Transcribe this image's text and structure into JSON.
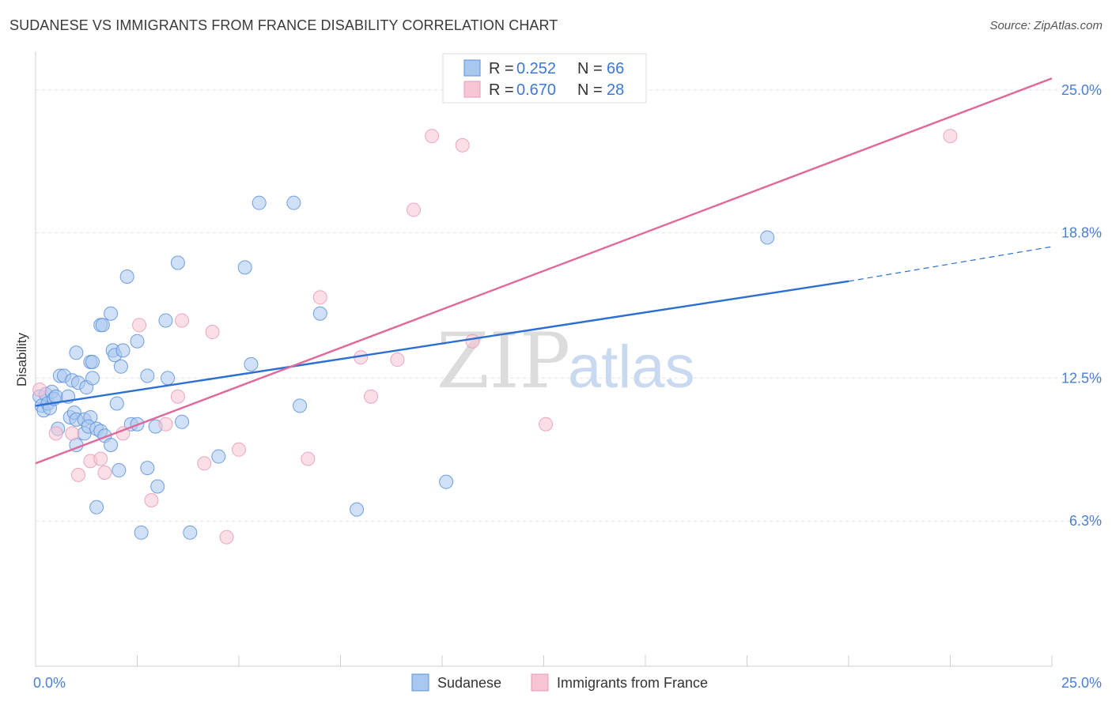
{
  "title": "SUDANESE VS IMMIGRANTS FROM FRANCE DISABILITY CORRELATION CHART",
  "source": "Source: ZipAtlas.com",
  "watermark": {
    "zip": "ZIP",
    "atlas": "atlas"
  },
  "chart_data": {
    "type": "scatter",
    "title": "SUDANESE VS IMMIGRANTS FROM FRANCE DISABILITY CORRELATION CHART",
    "xlabel": "",
    "ylabel": "Disability",
    "xlim": [
      0,
      25
    ],
    "ylim": [
      0,
      26.5
    ],
    "x_tick_labels": [
      {
        "value": 0,
        "label": "0.0%"
      },
      {
        "value": 25,
        "label": "25.0%"
      }
    ],
    "y_tick_labels": [
      {
        "value": 6.3,
        "label": "6.3%"
      },
      {
        "value": 12.5,
        "label": "12.5%"
      },
      {
        "value": 18.8,
        "label": "18.8%"
      },
      {
        "value": 25.0,
        "label": "25.0%"
      }
    ],
    "grid": true,
    "legend_position": "top-center",
    "series": [
      {
        "name": "Sudanese",
        "color": "#5b8fd9",
        "fill": "#a9c8f0",
        "stats": {
          "r_label": "R =",
          "r": "0.252",
          "n_label": "N =",
          "n": "66"
        },
        "trend": {
          "x0": 0,
          "y0": 11.3,
          "x1": 20,
          "y1": 16.7,
          "dashed_to_x": 25,
          "dashed_to_y": 18.2,
          "color": "#2a6fd1"
        },
        "points": [
          [
            0.1,
            11.7
          ],
          [
            0.15,
            11.3
          ],
          [
            0.2,
            11.1
          ],
          [
            0.25,
            11.8
          ],
          [
            0.3,
            11.4
          ],
          [
            0.35,
            11.2
          ],
          [
            0.4,
            11.9
          ],
          [
            0.45,
            11.6
          ],
          [
            0.5,
            11.7
          ],
          [
            0.55,
            10.3
          ],
          [
            0.6,
            12.6
          ],
          [
            0.7,
            12.6
          ],
          [
            0.8,
            11.7
          ],
          [
            0.85,
            10.8
          ],
          [
            0.9,
            12.4
          ],
          [
            0.95,
            11.0
          ],
          [
            1.0,
            9.6
          ],
          [
            1.0,
            10.7
          ],
          [
            1.05,
            12.3
          ],
          [
            1.0,
            13.6
          ],
          [
            1.2,
            10.7
          ],
          [
            1.2,
            10.1
          ],
          [
            1.25,
            12.1
          ],
          [
            1.35,
            10.8
          ],
          [
            1.3,
            10.4
          ],
          [
            1.35,
            13.2
          ],
          [
            1.4,
            13.2
          ],
          [
            1.4,
            12.5
          ],
          [
            1.5,
            6.9
          ],
          [
            1.5,
            10.3
          ],
          [
            1.6,
            14.8
          ],
          [
            1.6,
            10.2
          ],
          [
            1.65,
            14.8
          ],
          [
            1.7,
            10.0
          ],
          [
            1.85,
            9.6
          ],
          [
            1.85,
            15.3
          ],
          [
            1.9,
            13.7
          ],
          [
            1.95,
            13.5
          ],
          [
            2.0,
            11.4
          ],
          [
            2.05,
            8.5
          ],
          [
            2.1,
            13.0
          ],
          [
            2.15,
            13.7
          ],
          [
            2.25,
            16.9
          ],
          [
            2.35,
            10.5
          ],
          [
            2.5,
            14.1
          ],
          [
            2.5,
            10.5
          ],
          [
            2.6,
            5.8
          ],
          [
            2.75,
            8.6
          ],
          [
            2.75,
            12.6
          ],
          [
            2.95,
            10.4
          ],
          [
            3.0,
            7.8
          ],
          [
            3.2,
            15.0
          ],
          [
            3.25,
            12.5
          ],
          [
            3.5,
            17.5
          ],
          [
            3.6,
            10.6
          ],
          [
            3.8,
            5.8
          ],
          [
            4.5,
            9.1
          ],
          [
            5.15,
            17.3
          ],
          [
            5.3,
            13.1
          ],
          [
            5.5,
            20.1
          ],
          [
            6.35,
            20.1
          ],
          [
            6.5,
            11.3
          ],
          [
            7.0,
            15.3
          ],
          [
            7.9,
            6.8
          ],
          [
            10.1,
            8.0
          ],
          [
            18.0,
            18.6
          ]
        ]
      },
      {
        "name": "Immigrants from France",
        "color": "#e89ab5",
        "fill": "#f7c4d4",
        "stats": {
          "r_label": "R =",
          "r": "0.670",
          "n_label": "N =",
          "n": "28"
        },
        "trend": {
          "x0": 0,
          "y0": 8.8,
          "x1": 25,
          "y1": 25.5,
          "color": "#e0689a"
        },
        "points": [
          [
            0.1,
            12.0
          ],
          [
            0.5,
            10.1
          ],
          [
            0.9,
            10.1
          ],
          [
            1.05,
            8.3
          ],
          [
            1.35,
            8.9
          ],
          [
            1.6,
            9.0
          ],
          [
            1.7,
            8.4
          ],
          [
            2.15,
            10.1
          ],
          [
            2.55,
            14.8
          ],
          [
            2.85,
            7.2
          ],
          [
            3.2,
            10.5
          ],
          [
            3.5,
            11.7
          ],
          [
            3.6,
            15.0
          ],
          [
            4.15,
            8.8
          ],
          [
            4.35,
            14.5
          ],
          [
            4.7,
            5.6
          ],
          [
            5.0,
            9.4
          ],
          [
            6.7,
            9.0
          ],
          [
            7.0,
            16.0
          ],
          [
            8.0,
            13.4
          ],
          [
            8.25,
            11.7
          ],
          [
            8.9,
            13.3
          ],
          [
            9.3,
            19.8
          ],
          [
            9.75,
            23.0
          ],
          [
            10.5,
            22.6
          ],
          [
            10.75,
            14.1
          ],
          [
            12.55,
            10.5
          ],
          [
            22.5,
            23.0
          ]
        ]
      }
    ]
  }
}
